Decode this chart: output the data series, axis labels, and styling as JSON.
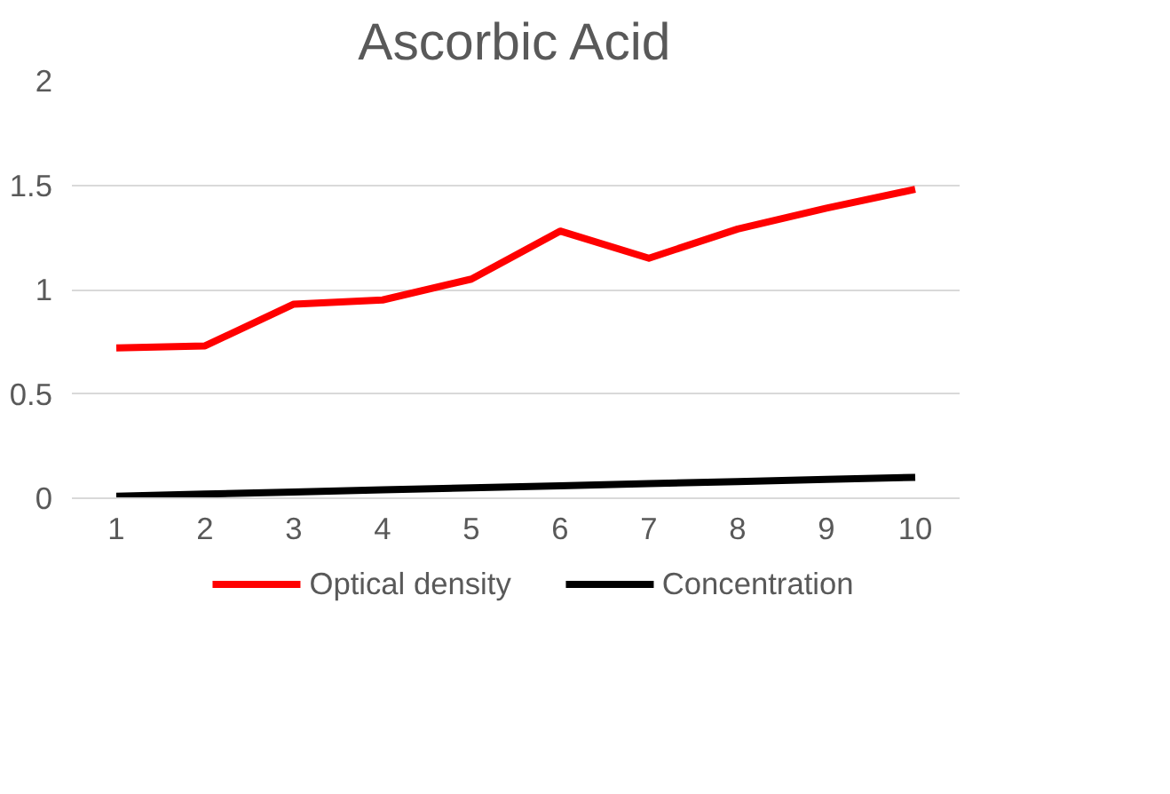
{
  "chart_data": {
    "type": "line",
    "title": "Ascorbic Acid",
    "categories": [
      "1",
      "2",
      "3",
      "4",
      "5",
      "6",
      "7",
      "8",
      "9",
      "10"
    ],
    "series": [
      {
        "name": "Optical density",
        "color": "#ff0000",
        "values": [
          0.72,
          0.73,
          0.93,
          0.95,
          1.05,
          1.28,
          1.15,
          1.29,
          1.39,
          1.48
        ]
      },
      {
        "name": "Concentration",
        "color": "#000000",
        "values": [
          0.01,
          0.02,
          0.03,
          0.04,
          0.05,
          0.06,
          0.07,
          0.08,
          0.09,
          0.1
        ]
      }
    ],
    "ylim": [
      0,
      2
    ],
    "yticks": [
      0,
      0.5,
      1,
      1.5,
      2
    ],
    "grid": "y",
    "legend": "bottom",
    "line_style": "solid",
    "marker": "none"
  }
}
